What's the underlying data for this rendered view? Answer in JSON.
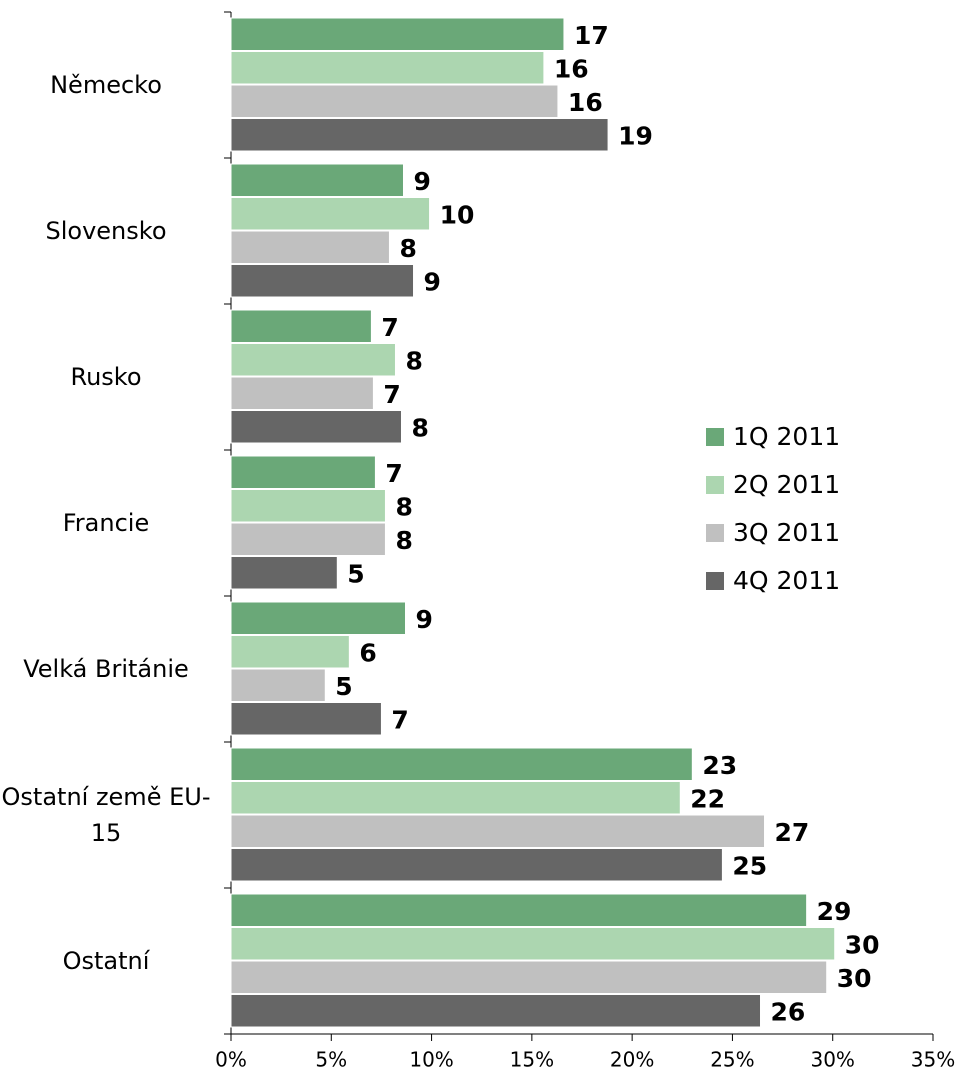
{
  "chart_data": {
    "type": "bar",
    "orientation": "horizontal",
    "categories": [
      "Německo",
      "Slovensko",
      "Rusko",
      "Francie",
      "Velká Británie",
      "Ostatní země EU-15",
      "Ostatní"
    ],
    "series": [
      {
        "name": "1Q 2011",
        "color": "#6aa878",
        "values": [
          16.6,
          8.6,
          7.0,
          7.2,
          8.7,
          23.0,
          28.7
        ],
        "value_labels": [
          "17",
          "9",
          "7",
          "7",
          "9",
          "23",
          "29"
        ]
      },
      {
        "name": "2Q 2011",
        "color": "#acd6b0",
        "values": [
          15.6,
          9.9,
          8.2,
          7.7,
          5.9,
          22.4,
          30.1
        ],
        "value_labels": [
          "16",
          "10",
          "8",
          "8",
          "6",
          "22",
          "30"
        ]
      },
      {
        "name": "3Q 2011",
        "color": "#c0c0c0",
        "values": [
          16.3,
          7.9,
          7.1,
          7.7,
          4.7,
          26.6,
          29.7
        ],
        "value_labels": [
          "16",
          "8",
          "7",
          "8",
          "5",
          "27",
          "30"
        ]
      },
      {
        "name": "4Q 2011",
        "color": "#666666",
        "values": [
          18.8,
          9.1,
          8.5,
          5.3,
          7.5,
          24.5,
          26.4
        ],
        "value_labels": [
          "19",
          "9",
          "8",
          "5",
          "7",
          "25",
          "26"
        ]
      }
    ],
    "xlim": [
      0,
      35
    ],
    "xticks": [
      {
        "value": 0,
        "label": "0%"
      },
      {
        "value": 5,
        "label": "5%"
      },
      {
        "value": 10,
        "label": "10%"
      },
      {
        "value": 15,
        "label": "15%"
      },
      {
        "value": 20,
        "label": "20%"
      },
      {
        "value": 25,
        "label": "25%"
      },
      {
        "value": 30,
        "label": "30%"
      },
      {
        "value": 35,
        "label": "35%"
      }
    ],
    "legend": "right"
  }
}
